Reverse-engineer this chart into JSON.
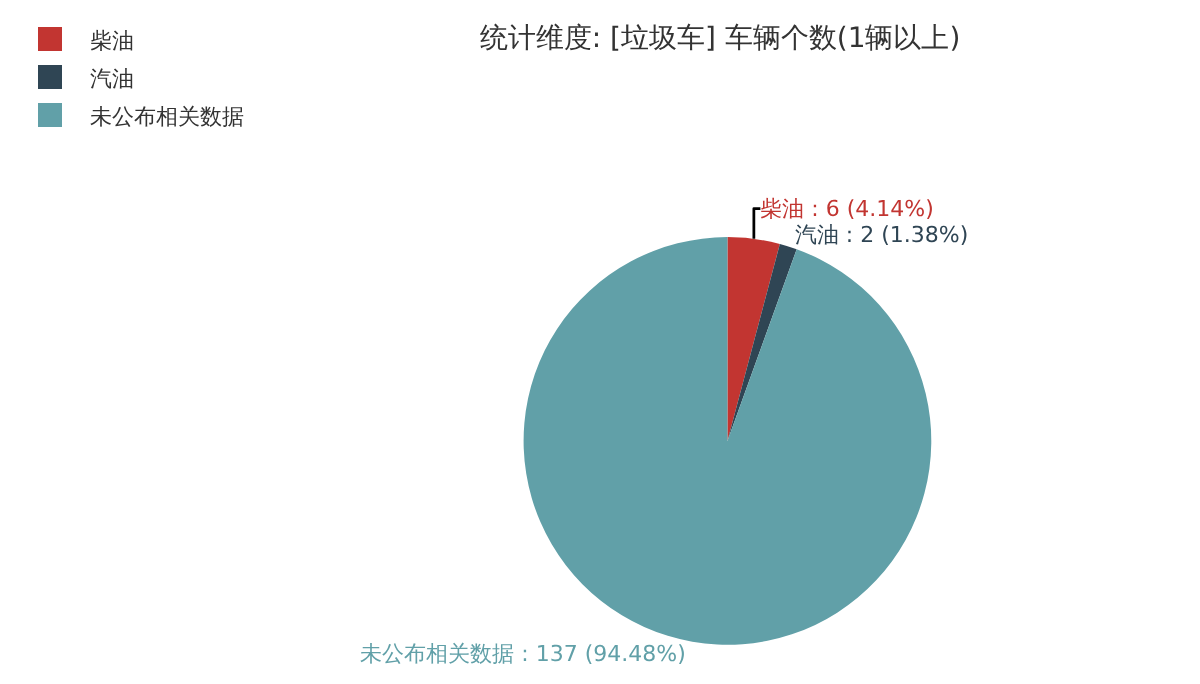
{
  "chart_data": {
    "type": "pie",
    "title": "统计维度: [垃圾车] 车辆个数(1辆以上)",
    "categories": [
      "柴油",
      "汽油",
      "未公布相关数据"
    ],
    "values": [
      6,
      2,
      137
    ],
    "colors": [
      "#c23531",
      "#2f4554",
      "#61a0a8"
    ],
    "value_labels": [
      "柴油 : 6 (4.14%)",
      "汽油 : 2 (1.38%)",
      "未公布相关数据 : 137 (94.48%)"
    ],
    "legend": "top left"
  }
}
